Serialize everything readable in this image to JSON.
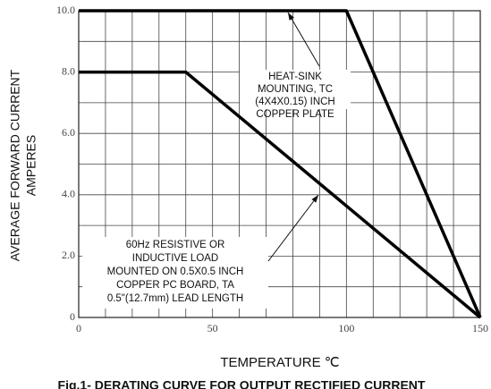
{
  "chart_data": {
    "type": "line",
    "x_label": "TEMPERATURE ℃",
    "y_label": [
      "AVERAGE FORWARD CURRENT",
      "AMPERES"
    ],
    "caption": "Fig.1- DERATING CURVE FOR OUTPUT RECTIFIED CURRENT",
    "series": [
      {
        "x": [
          0,
          100,
          150
        ],
        "values": [
          10,
          10,
          0
        ],
        "color": "#000000"
      },
      {
        "x": [
          0,
          40,
          150
        ],
        "values": [
          8,
          8,
          0
        ],
        "color": "#000000"
      }
    ],
    "xlim": [
      0,
      150
    ],
    "ylim": [
      0,
      10
    ],
    "xticks": [
      0,
      50,
      100,
      150
    ],
    "yticks": [
      0,
      {
        "value": 2,
        "label": "2.0"
      },
      {
        "value": 4,
        "label": "4.0"
      },
      {
        "value": 6,
        "label": "6.0"
      },
      {
        "value": 8,
        "label": "8.0"
      },
      {
        "value": 10,
        "label": "10.0"
      }
    ],
    "xminorticks": [
      10,
      20,
      30,
      40,
      60,
      70,
      80,
      90,
      110,
      120,
      130,
      140
    ],
    "yminorticks": [
      1,
      3,
      5,
      7,
      9
    ],
    "grid": true,
    "annotations": [
      {
        "lines": [
          "HEAT-SINK",
          "MOUNTING, TC",
          "(4X4X0.15) INCH",
          "COPPER PLATE"
        ]
      },
      {
        "lines": [
          "60Hz RESISTIVE OR",
          "INDUCTIVE LOAD",
          "MOUNTED ON 0.5X0.5 INCH",
          "COPPER PC BOARD, TA",
          "0.5\"(12.7mm) LEAD LENGTH"
        ]
      }
    ]
  }
}
